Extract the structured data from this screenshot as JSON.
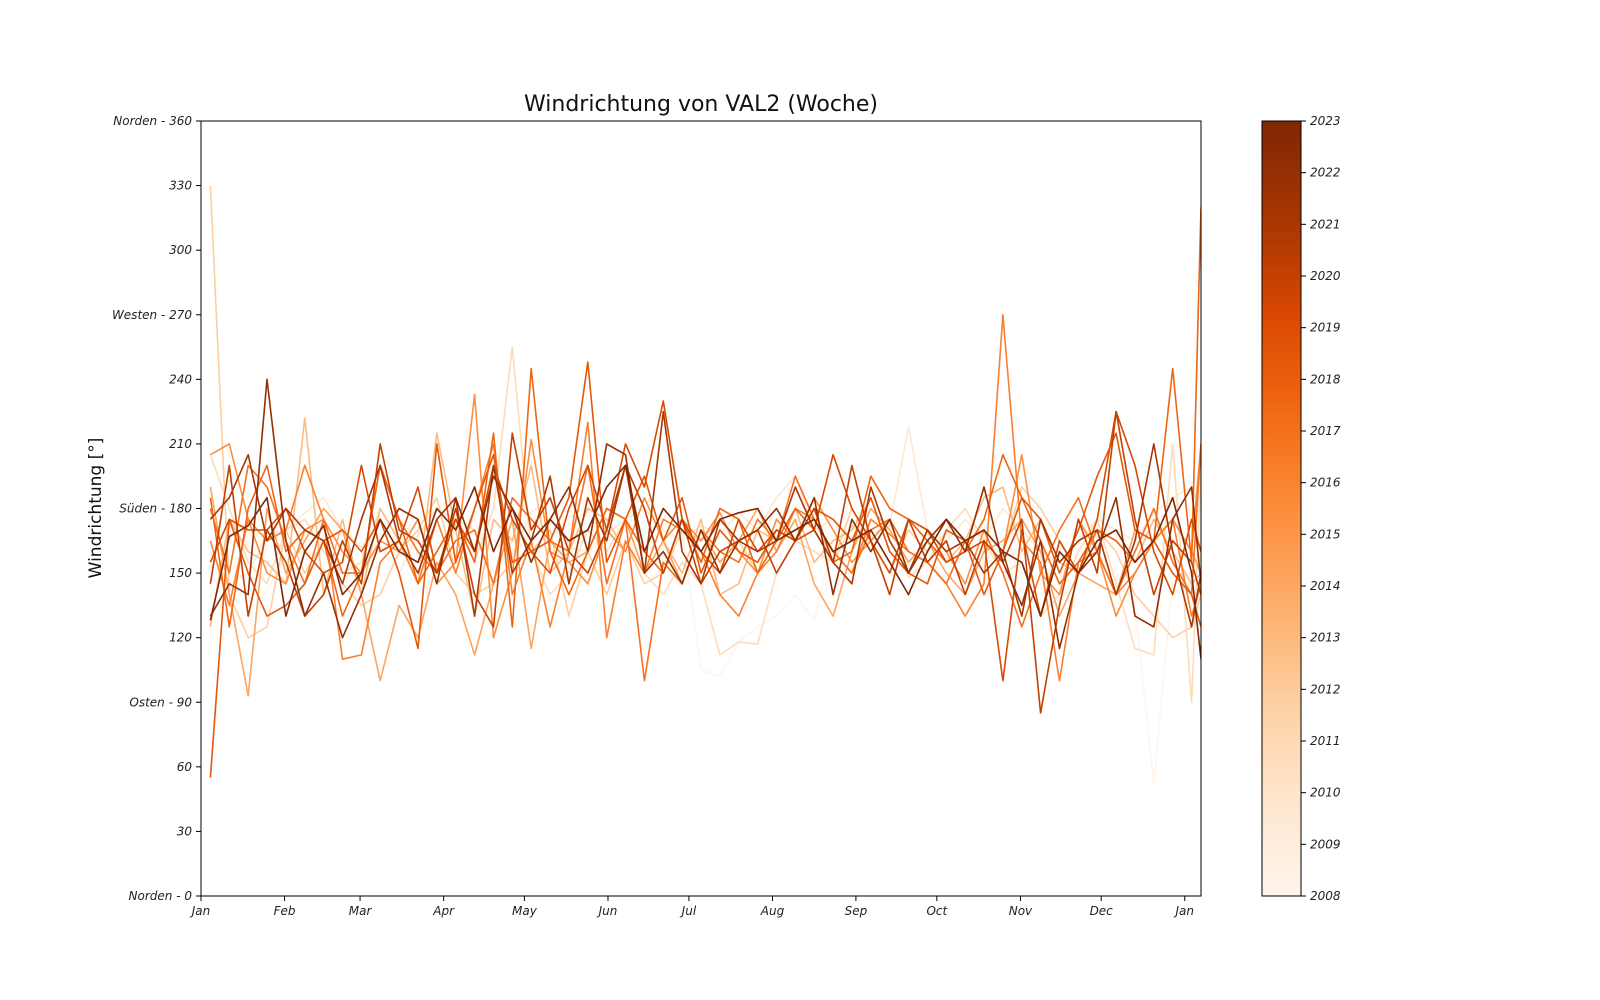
{
  "chart_data": {
    "type": "line",
    "title": "Windrichtung von VAL2 (Woche)",
    "xlabel": "",
    "ylabel": "Windrichtung [°]",
    "ylim": [
      0,
      360
    ],
    "y_ticks": [
      {
        "value": 0,
        "label": "Norden - 0"
      },
      {
        "value": 30,
        "label": "30"
      },
      {
        "value": 60,
        "label": "60"
      },
      {
        "value": 90,
        "label": "Osten - 90"
      },
      {
        "value": 120,
        "label": "120"
      },
      {
        "value": 150,
        "label": "150"
      },
      {
        "value": 180,
        "label": "Süden - 180"
      },
      {
        "value": 210,
        "label": "210"
      },
      {
        "value": 240,
        "label": "240"
      },
      {
        "value": 270,
        "label": "Westen - 270"
      },
      {
        "value": 300,
        "label": "300"
      },
      {
        "value": 330,
        "label": "330"
      },
      {
        "value": 360,
        "label": "Norden - 360"
      }
    ],
    "x_unit": "week of year",
    "xlim": [
      0,
      53
    ],
    "x_ticks": [
      {
        "value": 0,
        "label": "Jan"
      },
      {
        "value": 4.43,
        "label": "Feb"
      },
      {
        "value": 8.43,
        "label": "Mar"
      },
      {
        "value": 12.86,
        "label": "Apr"
      },
      {
        "value": 17.14,
        "label": "May"
      },
      {
        "value": 21.57,
        "label": "Jun"
      },
      {
        "value": 25.86,
        "label": "Jul"
      },
      {
        "value": 30.29,
        "label": "Aug"
      },
      {
        "value": 34.71,
        "label": "Sep"
      },
      {
        "value": 39,
        "label": "Oct"
      },
      {
        "value": 43.43,
        "label": "Nov"
      },
      {
        "value": 47.71,
        "label": "Dec"
      },
      {
        "value": 52.14,
        "label": "Jan"
      }
    ],
    "x_weeks": [
      0.5,
      1.5,
      2.5,
      3.5,
      4.5,
      5.5,
      6.5,
      7.5,
      8.5,
      9.5,
      10.5,
      11.5,
      12.5,
      13.5,
      14.5,
      15.5,
      16.5,
      17.5,
      18.5,
      19.5,
      20.5,
      21.5,
      22.5,
      23.5,
      24.5,
      25.5,
      26.5,
      27.5,
      28.5,
      29.5,
      30.5,
      31.5,
      32.5,
      33.5,
      34.5,
      35.5,
      36.5,
      37.5,
      38.5,
      39.5,
      40.5,
      41.5,
      42.5,
      43.5,
      44.5,
      45.5,
      46.5,
      47.5,
      48.5,
      49.5,
      50.5,
      51.5,
      52.5,
      53
    ],
    "colorbar": {
      "min": 2008,
      "max": 2023,
      "ticks": [
        "2008",
        "2009",
        "2010",
        "2011",
        "2012",
        "2013",
        "2014",
        "2015",
        "2016",
        "2017",
        "2018",
        "2019",
        "2020",
        "2021",
        "2022",
        "2023"
      ],
      "colormap": "Oranges",
      "stops": [
        "#fff5eb",
        "#fee6ce",
        "#fdd0a2",
        "#fdae6b",
        "#fd8d3c",
        "#f16913",
        "#d94801",
        "#a63603",
        "#7f2704"
      ]
    },
    "series": [
      {
        "year": 2008,
        "color": "#fff5eb",
        "values": [
          150,
          135,
          125,
          142,
          158,
          160,
          172,
          148,
          150,
          168,
          165,
          160,
          162,
          170,
          175,
          150,
          165,
          178,
          162,
          170,
          180,
          150,
          155,
          165,
          158,
          170,
          105,
          102,
          118,
          125,
          130,
          140,
          128,
          165,
          172,
          175,
          168,
          160,
          155,
          148,
          162,
          160,
          158,
          150,
          145,
          148,
          155,
          160,
          150,
          135,
          52,
          148,
          150,
          160
        ]
      },
      {
        "year": 2009,
        "color": "#fee9d3",
        "values": [
          160,
          145,
          150,
          168,
          170,
          178,
          185,
          170,
          162,
          175,
          150,
          168,
          180,
          175,
          170,
          165,
          158,
          178,
          185,
          162,
          160,
          168,
          175,
          180,
          170,
          165,
          172,
          168,
          178,
          170,
          185,
          195,
          170,
          175,
          165,
          168,
          172,
          218,
          170,
          165,
          175,
          165,
          180,
          170,
          160,
          155,
          165,
          175,
          170,
          165,
          178,
          185,
          190,
          178
        ]
      },
      {
        "year": 2010,
        "color": "#fedcb8",
        "values": [
          205,
          180,
          155,
          145,
          170,
          175,
          160,
          150,
          155,
          180,
          165,
          150,
          160,
          175,
          155,
          180,
          255,
          160,
          140,
          150,
          170,
          160,
          175,
          150,
          140,
          155,
          145,
          112,
          118,
          117,
          150,
          165,
          160,
          155,
          172,
          165,
          175,
          148,
          155,
          170,
          180,
          165,
          150,
          155,
          130,
          140,
          160,
          175,
          145,
          115,
          112,
          210,
          90,
          200
        ]
      },
      {
        "year": 2011,
        "color": "#fdcf9f",
        "values": [
          330,
          140,
          120,
          125,
          170,
          150,
          165,
          145,
          135,
          140,
          160,
          170,
          185,
          150,
          140,
          145,
          155,
          160,
          170,
          130,
          160,
          140,
          165,
          145,
          150,
          170,
          165,
          175,
          165,
          150,
          165,
          170,
          175,
          155,
          180,
          165,
          150,
          170,
          160,
          175,
          165,
          150,
          160,
          190,
          180,
          165,
          150,
          170,
          160,
          140,
          130,
          120,
          125,
          140
        ]
      },
      {
        "year": 2012,
        "color": "#fdbb84",
        "values": [
          125,
          175,
          160,
          155,
          145,
          222,
          140,
          175,
          140,
          180,
          165,
          145,
          215,
          170,
          130,
          175,
          165,
          200,
          150,
          160,
          180,
          175,
          160,
          185,
          165,
          150,
          175,
          140,
          145,
          170,
          165,
          180,
          155,
          165,
          170,
          185,
          160,
          150,
          170,
          155,
          165,
          185,
          190,
          160,
          175,
          155,
          150,
          170,
          165,
          155,
          175,
          160,
          145,
          150
        ]
      },
      {
        "year": 2013,
        "color": "#fda45f",
        "values": [
          190,
          140,
          93,
          180,
          150,
          165,
          180,
          170,
          140,
          100,
          135,
          120,
          155,
          140,
          112,
          145,
          175,
          115,
          165,
          155,
          160,
          180,
          175,
          150,
          165,
          145,
          170,
          155,
          165,
          180,
          160,
          175,
          145,
          130,
          160,
          180,
          170,
          155,
          165,
          150,
          140,
          160,
          165,
          175,
          160,
          130,
          150,
          145,
          140,
          170,
          165,
          175,
          160,
          150
        ]
      },
      {
        "year": 2014,
        "color": "#fd8e3d",
        "values": [
          205,
          210,
          175,
          150,
          145,
          170,
          175,
          160,
          150,
          165,
          160,
          175,
          145,
          155,
          233,
          120,
          150,
          212,
          160,
          155,
          145,
          170,
          160,
          185,
          165,
          175,
          165,
          178,
          160,
          150,
          175,
          165,
          185,
          170,
          155,
          165,
          175,
          150,
          170,
          160,
          145,
          170,
          160,
          205,
          150,
          140,
          175,
          160,
          130,
          150,
          165,
          175,
          160,
          210
        ]
      },
      {
        "year": 2015,
        "color": "#fb7f2e",
        "values": [
          165,
          135,
          175,
          165,
          170,
          200,
          175,
          110,
          112,
          155,
          165,
          145,
          175,
          150,
          180,
          210,
          140,
          165,
          125,
          160,
          220,
          120,
          165,
          150,
          175,
          170,
          160,
          140,
          130,
          150,
          160,
          180,
          175,
          160,
          150,
          175,
          168,
          160,
          155,
          145,
          130,
          145,
          270,
          165,
          155,
          100,
          155,
          160,
          140,
          150,
          165,
          175,
          130,
          145
        ]
      },
      {
        "year": 2016,
        "color": "#f77020",
        "values": [
          180,
          150,
          200,
          190,
          165,
          145,
          175,
          150,
          150,
          200,
          175,
          160,
          150,
          165,
          170,
          145,
          185,
          175,
          165,
          160,
          200,
          145,
          175,
          100,
          155,
          145,
          170,
          160,
          155,
          175,
          165,
          195,
          175,
          160,
          150,
          170,
          175,
          160,
          155,
          145,
          165,
          170,
          150,
          125,
          150,
          170,
          185,
          160,
          140,
          160,
          180,
          155,
          140,
          210
        ]
      },
      {
        "year": 2017,
        "color": "#ef6612",
        "values": [
          185,
          125,
          180,
          200,
          160,
          170,
          165,
          130,
          150,
          200,
          175,
          145,
          160,
          175,
          155,
          215,
          125,
          245,
          160,
          140,
          160,
          180,
          175,
          160,
          150,
          175,
          155,
          180,
          175,
          150,
          165,
          180,
          170,
          155,
          160,
          195,
          180,
          175,
          165,
          155,
          160,
          175,
          205,
          185,
          165,
          145,
          155,
          170,
          165,
          155,
          165,
          245,
          155,
          320
        ]
      },
      {
        "year": 2018,
        "color": "#e45809",
        "values": [
          55,
          175,
          150,
          130,
          135,
          145,
          165,
          170,
          160,
          175,
          150,
          115,
          210,
          155,
          180,
          205,
          155,
          160,
          165,
          185,
          248,
          155,
          175,
          195,
          165,
          185,
          150,
          170,
          160,
          155,
          170,
          165,
          180,
          175,
          165,
          185,
          160,
          150,
          145,
          170,
          165,
          140,
          160,
          185,
          175,
          150,
          170,
          195,
          215,
          170,
          165,
          150,
          140,
          125
        ]
      },
      {
        "year": 2019,
        "color": "#d84a02",
        "values": [
          155,
          175,
          170,
          170,
          180,
          160,
          150,
          155,
          200,
          160,
          165,
          190,
          150,
          175,
          160,
          200,
          175,
          160,
          150,
          180,
          200,
          170,
          210,
          190,
          230,
          175,
          160,
          150,
          175,
          160,
          170,
          165,
          170,
          205,
          180,
          165,
          150,
          175,
          170,
          155,
          160,
          165,
          100,
          170,
          130,
          165,
          150,
          175,
          225,
          200,
          160,
          140,
          175,
          160
        ]
      },
      {
        "year": 2020,
        "color": "#c24002",
        "values": [
          145,
          200,
          130,
          170,
          155,
          130,
          140,
          165,
          145,
          210,
          170,
          165,
          150,
          180,
          140,
          125,
          215,
          170,
          185,
          160,
          150,
          170,
          200,
          180,
          150,
          175,
          145,
          160,
          165,
          170,
          150,
          165,
          180,
          155,
          200,
          165,
          140,
          175,
          155,
          165,
          140,
          165,
          155,
          175,
          85,
          135,
          175,
          150,
          225,
          175,
          140,
          165,
          155,
          140
        ]
      },
      {
        "year": 2021,
        "color": "#a93703",
        "values": [
          175,
          185,
          205,
          165,
          180,
          170,
          165,
          145,
          175,
          200,
          165,
          150,
          175,
          185,
          130,
          200,
          150,
          165,
          195,
          145,
          185,
          165,
          200,
          150,
          225,
          160,
          145,
          175,
          165,
          160,
          165,
          190,
          170,
          155,
          145,
          190,
          165,
          150,
          170,
          160,
          165,
          150,
          160,
          130,
          175,
          155,
          165,
          170,
          140,
          165,
          210,
          160,
          125,
          150
        ]
      },
      {
        "year": 2022,
        "color": "#923004",
        "values": [
          130,
          145,
          140,
          240,
          165,
          130,
          150,
          120,
          140,
          165,
          180,
          175,
          145,
          185,
          160,
          195,
          180,
          155,
          175,
          190,
          160,
          210,
          205,
          150,
          160,
          145,
          170,
          150,
          165,
          170,
          180,
          165,
          185,
          140,
          175,
          160,
          175,
          150,
          165,
          175,
          160,
          190,
          155,
          135,
          165,
          115,
          150,
          160,
          185,
          130,
          125,
          175,
          190,
          145
        ]
      },
      {
        "year": 2023,
        "color": "#7f2704",
        "values": [
          128,
          167,
          172,
          185,
          130,
          160,
          172,
          140,
          150,
          175,
          160,
          155,
          180,
          170,
          190,
          160,
          180,
          165,
          175,
          165,
          170,
          190,
          200,
          160,
          180,
          170,
          160,
          175,
          178,
          180,
          165,
          170,
          175,
          160,
          165,
          170,
          155,
          140,
          160,
          175,
          165,
          170,
          160,
          155,
          130,
          160,
          150,
          165,
          170,
          155,
          165,
          185,
          150,
          110
        ]
      }
    ]
  }
}
